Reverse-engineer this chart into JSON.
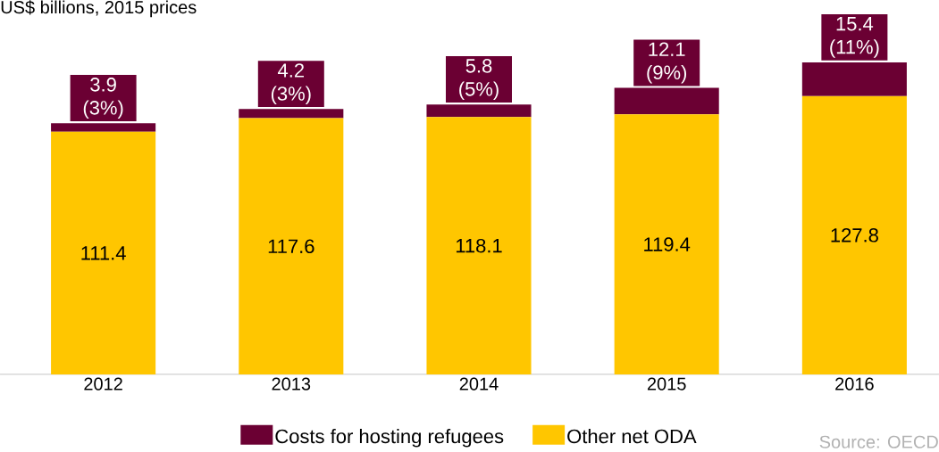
{
  "chart_data": {
    "type": "bar",
    "stacked": true,
    "title": "US$ billions, 2015 prices",
    "categories": [
      "2012",
      "2013",
      "2014",
      "2015",
      "2016"
    ],
    "series": [
      {
        "name": "Other net ODA",
        "color": "#ffc600",
        "values": [
          111.4,
          117.6,
          118.1,
          119.4,
          127.8
        ],
        "value_labels": [
          "111.4",
          "117.6",
          "118.1",
          "119.4",
          "127.8"
        ]
      },
      {
        "name": "Costs for hosting refugees",
        "color": "#6b0033",
        "values": [
          3.9,
          4.2,
          5.8,
          12.1,
          15.4
        ],
        "value_labels": [
          "3.9 (3%)",
          "4.2 (3%)",
          "5.8 (5%)",
          "12.1 (9%)",
          "15.4 (11%)"
        ]
      }
    ],
    "legend": "bottom",
    "annotations": [
      "Source: OECD"
    ]
  }
}
